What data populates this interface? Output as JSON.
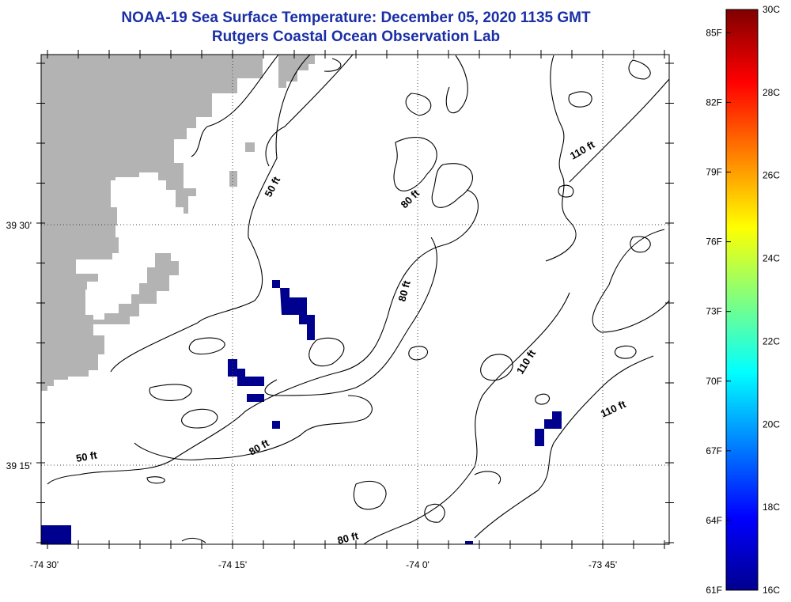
{
  "header": {
    "title_line1": "NOAA-19 Sea Surface Temperature:  December 05, 2020 1135 GMT",
    "title_line2": "Rutgers Coastal Ocean Observation Lab"
  },
  "map": {
    "lon_ticks": [
      {
        "label": "-74 30'"
      },
      {
        "label": "-74 15'"
      },
      {
        "label": "-74 0'"
      },
      {
        "label": "-73 45'"
      }
    ],
    "lat_ticks": [
      {
        "label": "39 30'"
      },
      {
        "label": "39 15'"
      }
    ],
    "contour_labels": [
      {
        "text": "50 ft"
      },
      {
        "text": "50 ft"
      },
      {
        "text": "80 ft"
      },
      {
        "text": "80 ft"
      },
      {
        "text": "80 ft"
      },
      {
        "text": "80 ft"
      },
      {
        "text": "110 ft"
      },
      {
        "text": "110 ft"
      }
    ],
    "colors": {
      "land": "#b3b3b3",
      "cold_sst_pixel": "#00008f",
      "contour": "#000000"
    }
  },
  "colorbar": {
    "fahrenheit_labels": [
      "85F",
      "82F",
      "79F",
      "76F",
      "73F",
      "70F",
      "67F",
      "64F",
      "61F"
    ],
    "celsius_labels": [
      "30C",
      "28C",
      "26C",
      "24C",
      "22C",
      "20C",
      "18C",
      "16C"
    ],
    "colormap": [
      "#00008f",
      "#0000ff",
      "#0080ff",
      "#00ffff",
      "#80ff80",
      "#ffff00",
      "#ff8000",
      "#ff0000",
      "#800000"
    ]
  }
}
